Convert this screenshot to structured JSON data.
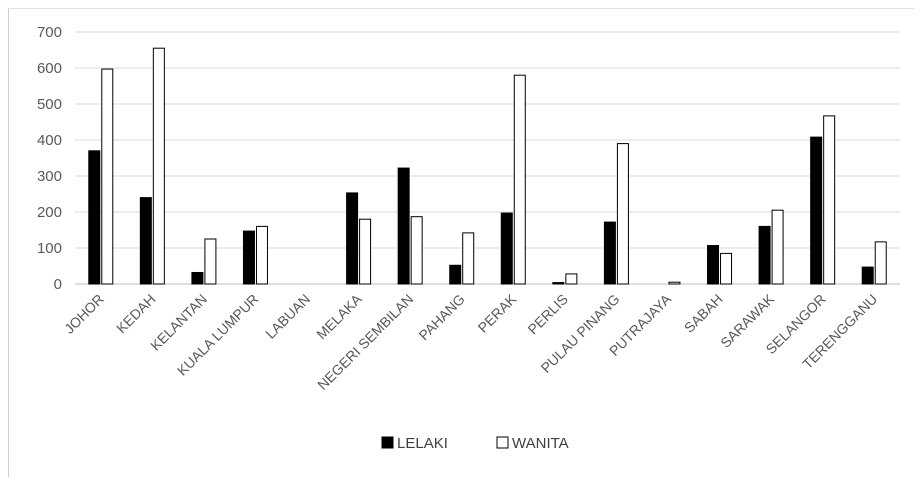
{
  "chart_data": {
    "type": "bar",
    "title": "",
    "xlabel": "",
    "ylabel": "",
    "ylim": [
      0,
      700
    ],
    "yticks": [
      0,
      100,
      200,
      300,
      400,
      500,
      600,
      700
    ],
    "grid": true,
    "legend_position": "bottom",
    "categories": [
      "JOHOR",
      "KEDAH",
      "KELANTAN",
      "KUALA LUMPUR",
      "LABUAN",
      "MELAKA",
      "NEGERI SEMBILAN",
      "PAHANG",
      "PERAK",
      "PERLIS",
      "PULAU PINANG",
      "PUTRAJAYA",
      "SABAH",
      "SARAWAK",
      "SELANGOR",
      "TERENGGANU"
    ],
    "series": [
      {
        "name": "LELAKI",
        "color": "#000000",
        "fill": "solid",
        "values": [
          370,
          240,
          32,
          147,
          0,
          253,
          322,
          52,
          197,
          4,
          172,
          0,
          107,
          160,
          408,
          47
        ]
      },
      {
        "name": "WANITA",
        "color": "#ffffff",
        "fill": "outline",
        "values": [
          597,
          655,
          125,
          160,
          0,
          180,
          187,
          142,
          580,
          28,
          390,
          5,
          85,
          205,
          467,
          117
        ]
      }
    ]
  }
}
